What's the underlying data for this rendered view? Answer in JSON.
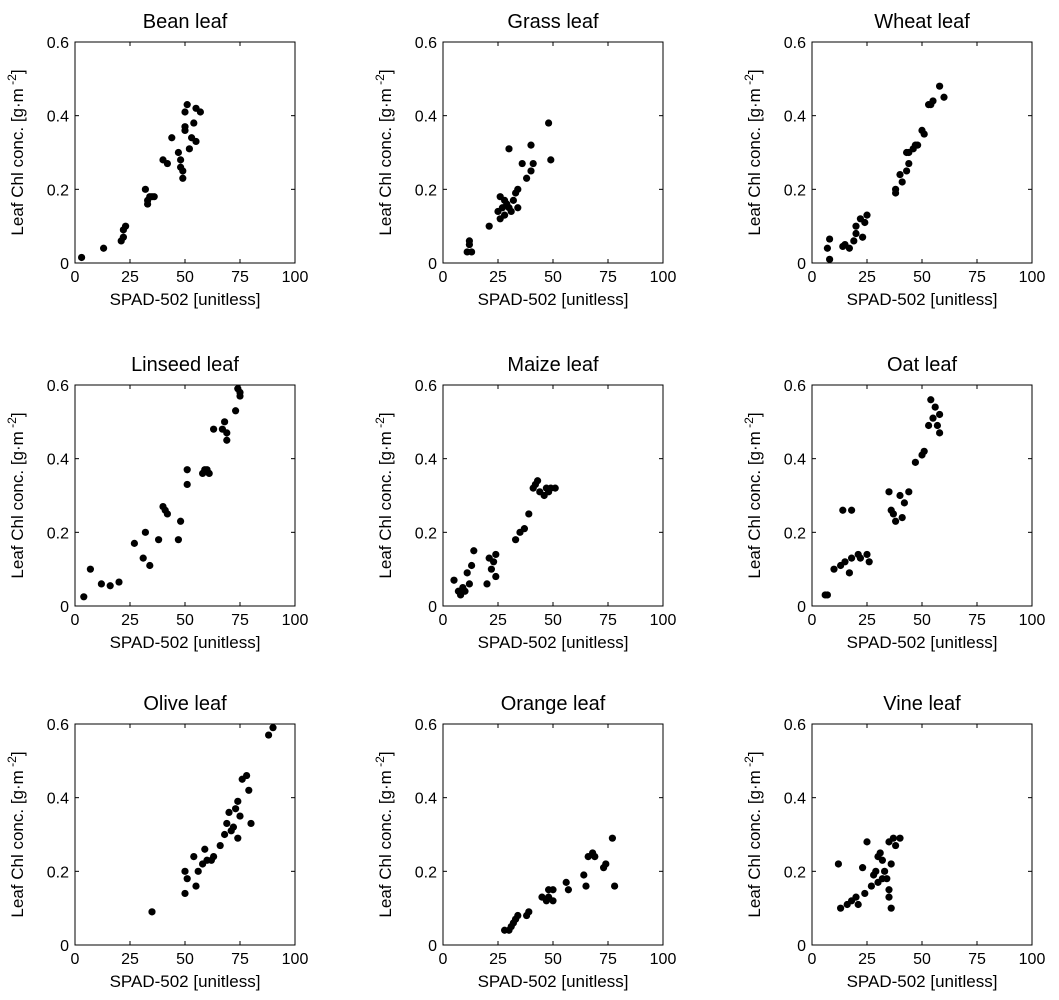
{
  "chart_data": [
    {
      "type": "scatter",
      "title": "Bean leaf",
      "xlabel": "SPAD-502 [unitless]",
      "ylabel": "Leaf Chl conc. [g·m",
      "ylabel_exp": "-2",
      "ylabel_close": "]",
      "xlim": [
        0,
        100
      ],
      "ylim": [
        0,
        0.6
      ],
      "x_ticks": [
        "0",
        "25",
        "50",
        "75",
        "100"
      ],
      "y_ticks": [
        "0",
        "0.2",
        "0.4",
        "0.6"
      ],
      "points": [
        [
          3,
          0.015
        ],
        [
          13,
          0.04
        ],
        [
          21,
          0.06
        ],
        [
          22,
          0.07
        ],
        [
          22,
          0.09
        ],
        [
          23,
          0.1
        ],
        [
          32,
          0.2
        ],
        [
          33,
          0.17
        ],
        [
          33,
          0.16
        ],
        [
          34,
          0.18
        ],
        [
          35,
          0.18
        ],
        [
          36,
          0.18
        ],
        [
          40,
          0.28
        ],
        [
          42,
          0.27
        ],
        [
          44,
          0.34
        ],
        [
          47,
          0.3
        ],
        [
          48,
          0.28
        ],
        [
          48,
          0.26
        ],
        [
          49,
          0.25
        ],
        [
          49,
          0.23
        ],
        [
          50,
          0.36
        ],
        [
          50,
          0.41
        ],
        [
          50,
          0.37
        ],
        [
          51,
          0.43
        ],
        [
          52,
          0.31
        ],
        [
          53,
          0.34
        ],
        [
          54,
          0.38
        ],
        [
          55,
          0.42
        ],
        [
          55,
          0.33
        ],
        [
          57,
          0.41
        ]
      ]
    },
    {
      "type": "scatter",
      "title": "Grass leaf",
      "xlabel": "SPAD-502 [unitless]",
      "ylabel": "Leaf Chl conc. [g·m",
      "ylabel_exp": "-2",
      "ylabel_close": "]",
      "xlim": [
        0,
        100
      ],
      "ylim": [
        0,
        0.6
      ],
      "x_ticks": [
        "0",
        "25",
        "50",
        "75",
        "100"
      ],
      "y_ticks": [
        "0",
        "0.2",
        "0.4",
        "0.6"
      ],
      "points": [
        [
          11,
          0.03
        ],
        [
          12,
          0.05
        ],
        [
          12,
          0.06
        ],
        [
          13,
          0.03
        ],
        [
          21,
          0.1
        ],
        [
          25,
          0.14
        ],
        [
          26,
          0.12
        ],
        [
          26,
          0.18
        ],
        [
          27,
          0.15
        ],
        [
          28,
          0.17
        ],
        [
          28,
          0.13
        ],
        [
          29,
          0.16
        ],
        [
          30,
          0.15
        ],
        [
          30,
          0.31
        ],
        [
          31,
          0.14
        ],
        [
          32,
          0.17
        ],
        [
          33,
          0.19
        ],
        [
          34,
          0.15
        ],
        [
          34,
          0.2
        ],
        [
          36,
          0.27
        ],
        [
          38,
          0.23
        ],
        [
          40,
          0.32
        ],
        [
          40,
          0.25
        ],
        [
          41,
          0.27
        ],
        [
          48,
          0.38
        ],
        [
          49,
          0.28
        ]
      ]
    },
    {
      "type": "scatter",
      "title": "Wheat leaf",
      "xlabel": "SPAD-502 [unitless]",
      "ylabel": "Leaf Chl conc. [g·m",
      "ylabel_exp": "-2",
      "ylabel_close": "]",
      "xlim": [
        0,
        100
      ],
      "ylim": [
        0,
        0.6
      ],
      "x_ticks": [
        "0",
        "25",
        "50",
        "75",
        "100"
      ],
      "y_ticks": [
        "0",
        "0.2",
        "0.4",
        "0.6"
      ],
      "points": [
        [
          7,
          0.04
        ],
        [
          8,
          0.065
        ],
        [
          8,
          0.01
        ],
        [
          14,
          0.045
        ],
        [
          15,
          0.05
        ],
        [
          17,
          0.04
        ],
        [
          19,
          0.06
        ],
        [
          20,
          0.08
        ],
        [
          20,
          0.1
        ],
        [
          22,
          0.12
        ],
        [
          23,
          0.07
        ],
        [
          24,
          0.11
        ],
        [
          25,
          0.13
        ],
        [
          38,
          0.2
        ],
        [
          38,
          0.19
        ],
        [
          40,
          0.24
        ],
        [
          41,
          0.22
        ],
        [
          43,
          0.25
        ],
        [
          43,
          0.3
        ],
        [
          44,
          0.3
        ],
        [
          44,
          0.27
        ],
        [
          46,
          0.31
        ],
        [
          47,
          0.32
        ],
        [
          48,
          0.32
        ],
        [
          50,
          0.36
        ],
        [
          51,
          0.35
        ],
        [
          53,
          0.43
        ],
        [
          54,
          0.43
        ],
        [
          55,
          0.44
        ],
        [
          58,
          0.48
        ],
        [
          60,
          0.45
        ]
      ]
    },
    {
      "type": "scatter",
      "title": "Linseed leaf",
      "xlabel": "SPAD-502 [unitless]",
      "ylabel": "Leaf Chl conc. [g·m",
      "ylabel_exp": "-2",
      "ylabel_close": "]",
      "xlim": [
        0,
        100
      ],
      "ylim": [
        0,
        0.6
      ],
      "x_ticks": [
        "0",
        "25",
        "50",
        "75",
        "100"
      ],
      "y_ticks": [
        "0",
        "0.2",
        "0.4",
        "0.6"
      ],
      "points": [
        [
          4,
          0.025
        ],
        [
          7,
          0.1
        ],
        [
          12,
          0.06
        ],
        [
          16,
          0.055
        ],
        [
          20,
          0.065
        ],
        [
          27,
          0.17
        ],
        [
          31,
          0.13
        ],
        [
          32,
          0.2
        ],
        [
          34,
          0.11
        ],
        [
          38,
          0.18
        ],
        [
          40,
          0.27
        ],
        [
          41,
          0.26
        ],
        [
          42,
          0.25
        ],
        [
          47,
          0.18
        ],
        [
          48,
          0.23
        ],
        [
          51,
          0.33
        ],
        [
          51,
          0.37
        ],
        [
          58,
          0.36
        ],
        [
          59,
          0.37
        ],
        [
          60,
          0.37
        ],
        [
          61,
          0.36
        ],
        [
          63,
          0.48
        ],
        [
          67,
          0.48
        ],
        [
          68,
          0.5
        ],
        [
          69,
          0.47
        ],
        [
          69,
          0.45
        ],
        [
          73,
          0.53
        ],
        [
          74,
          0.59
        ],
        [
          75,
          0.58
        ],
        [
          75,
          0.57
        ]
      ]
    },
    {
      "type": "scatter",
      "title": "Maize leaf",
      "xlabel": "SPAD-502 [unitless]",
      "ylabel": "Leaf Chl conc. [g·m",
      "ylabel_exp": "-2",
      "ylabel_close": "]",
      "xlim": [
        0,
        100
      ],
      "ylim": [
        0,
        0.6
      ],
      "x_ticks": [
        "0",
        "25",
        "50",
        "75",
        "100"
      ],
      "y_ticks": [
        "0",
        "0.2",
        "0.4",
        "0.6"
      ],
      "points": [
        [
          5,
          0.07
        ],
        [
          7,
          0.04
        ],
        [
          8,
          0.03
        ],
        [
          9,
          0.05
        ],
        [
          10,
          0.04
        ],
        [
          11,
          0.09
        ],
        [
          12,
          0.06
        ],
        [
          13,
          0.11
        ],
        [
          14,
          0.15
        ],
        [
          20,
          0.06
        ],
        [
          21,
          0.13
        ],
        [
          22,
          0.1
        ],
        [
          23,
          0.12
        ],
        [
          24,
          0.14
        ],
        [
          24,
          0.08
        ],
        [
          33,
          0.18
        ],
        [
          35,
          0.2
        ],
        [
          37,
          0.21
        ],
        [
          39,
          0.25
        ],
        [
          41,
          0.32
        ],
        [
          42,
          0.33
        ],
        [
          43,
          0.34
        ],
        [
          44,
          0.31
        ],
        [
          46,
          0.3
        ],
        [
          47,
          0.32
        ],
        [
          48,
          0.31
        ],
        [
          49,
          0.32
        ],
        [
          51,
          0.32
        ]
      ]
    },
    {
      "type": "scatter",
      "title": "Oat leaf",
      "xlabel": "SPAD-502 [unitless]",
      "ylabel": "Leaf Chl conc. [g·m",
      "ylabel_exp": "-2",
      "ylabel_close": "]",
      "xlim": [
        0,
        100
      ],
      "ylim": [
        0,
        0.6
      ],
      "x_ticks": [
        "0",
        "25",
        "50",
        "75",
        "100"
      ],
      "y_ticks": [
        "0",
        "0.2",
        "0.4",
        "0.6"
      ],
      "points": [
        [
          6,
          0.03
        ],
        [
          7,
          0.03
        ],
        [
          10,
          0.1
        ],
        [
          13,
          0.11
        ],
        [
          14,
          0.26
        ],
        [
          15,
          0.12
        ],
        [
          17,
          0.09
        ],
        [
          18,
          0.26
        ],
        [
          18,
          0.13
        ],
        [
          21,
          0.14
        ],
        [
          22,
          0.13
        ],
        [
          25,
          0.14
        ],
        [
          26,
          0.12
        ],
        [
          35,
          0.31
        ],
        [
          36,
          0.26
        ],
        [
          37,
          0.25
        ],
        [
          38,
          0.23
        ],
        [
          40,
          0.3
        ],
        [
          41,
          0.24
        ],
        [
          42,
          0.28
        ],
        [
          44,
          0.31
        ],
        [
          47,
          0.39
        ],
        [
          50,
          0.41
        ],
        [
          51,
          0.42
        ],
        [
          53,
          0.49
        ],
        [
          54,
          0.56
        ],
        [
          55,
          0.51
        ],
        [
          56,
          0.54
        ],
        [
          57,
          0.49
        ],
        [
          58,
          0.52
        ],
        [
          58,
          0.47
        ]
      ]
    },
    {
      "type": "scatter",
      "title": "Olive leaf",
      "xlabel": "SPAD-502 [unitless]",
      "ylabel": "Leaf Chl conc. [g·m",
      "ylabel_exp": "-2",
      "ylabel_close": "]",
      "xlim": [
        0,
        100
      ],
      "ylim": [
        0,
        0.6
      ],
      "x_ticks": [
        "0",
        "25",
        "50",
        "75",
        "100"
      ],
      "y_ticks": [
        "0",
        "0.2",
        "0.4",
        "0.6"
      ],
      "points": [
        [
          35,
          0.09
        ],
        [
          50,
          0.14
        ],
        [
          50,
          0.2
        ],
        [
          51,
          0.18
        ],
        [
          54,
          0.24
        ],
        [
          55,
          0.16
        ],
        [
          56,
          0.2
        ],
        [
          58,
          0.22
        ],
        [
          59,
          0.26
        ],
        [
          60,
          0.23
        ],
        [
          62,
          0.23
        ],
        [
          63,
          0.24
        ],
        [
          66,
          0.27
        ],
        [
          68,
          0.3
        ],
        [
          69,
          0.33
        ],
        [
          70,
          0.36
        ],
        [
          71,
          0.31
        ],
        [
          72,
          0.32
        ],
        [
          73,
          0.37
        ],
        [
          74,
          0.39
        ],
        [
          74,
          0.29
        ],
        [
          75,
          0.35
        ],
        [
          76,
          0.45
        ],
        [
          78,
          0.46
        ],
        [
          79,
          0.42
        ],
        [
          80,
          0.33
        ],
        [
          88,
          0.57
        ],
        [
          90,
          0.59
        ]
      ]
    },
    {
      "type": "scatter",
      "title": "Orange leaf",
      "xlabel": "SPAD-502 [unitless]",
      "ylabel": "Leaf Chl conc. [g·m",
      "ylabel_exp": "-2",
      "ylabel_close": "]",
      "xlim": [
        0,
        100
      ],
      "ylim": [
        0,
        0.6
      ],
      "x_ticks": [
        "0",
        "25",
        "50",
        "75",
        "100"
      ],
      "y_ticks": [
        "0",
        "0.2",
        "0.4",
        "0.6"
      ],
      "points": [
        [
          28,
          0.04
        ],
        [
          30,
          0.04
        ],
        [
          31,
          0.05
        ],
        [
          32,
          0.06
        ],
        [
          33,
          0.07
        ],
        [
          34,
          0.08
        ],
        [
          38,
          0.08
        ],
        [
          39,
          0.09
        ],
        [
          45,
          0.13
        ],
        [
          47,
          0.12
        ],
        [
          48,
          0.15
        ],
        [
          48,
          0.13
        ],
        [
          50,
          0.12
        ],
        [
          50,
          0.15
        ],
        [
          56,
          0.17
        ],
        [
          57,
          0.15
        ],
        [
          64,
          0.19
        ],
        [
          65,
          0.16
        ],
        [
          66,
          0.24
        ],
        [
          68,
          0.25
        ],
        [
          69,
          0.24
        ],
        [
          73,
          0.21
        ],
        [
          74,
          0.22
        ],
        [
          77,
          0.29
        ],
        [
          78,
          0.16
        ]
      ]
    },
    {
      "type": "scatter",
      "title": "Vine leaf",
      "xlabel": "SPAD-502 [unitless]",
      "ylabel": "Leaf Chl conc. [g·m",
      "ylabel_exp": "-2",
      "ylabel_close": "]",
      "xlim": [
        0,
        100
      ],
      "ylim": [
        0,
        0.6
      ],
      "x_ticks": [
        "0",
        "25",
        "50",
        "75",
        "100"
      ],
      "y_ticks": [
        "0",
        "0.2",
        "0.4",
        "0.6"
      ],
      "points": [
        [
          12,
          0.22
        ],
        [
          13,
          0.1
        ],
        [
          16,
          0.11
        ],
        [
          18,
          0.12
        ],
        [
          20,
          0.13
        ],
        [
          21,
          0.11
        ],
        [
          23,
          0.21
        ],
        [
          24,
          0.14
        ],
        [
          25,
          0.28
        ],
        [
          27,
          0.16
        ],
        [
          28,
          0.19
        ],
        [
          29,
          0.2
        ],
        [
          30,
          0.17
        ],
        [
          30,
          0.24
        ],
        [
          31,
          0.25
        ],
        [
          32,
          0.23
        ],
        [
          32,
          0.18
        ],
        [
          33,
          0.2
        ],
        [
          34,
          0.18
        ],
        [
          35,
          0.28
        ],
        [
          35,
          0.15
        ],
        [
          35,
          0.13
        ],
        [
          36,
          0.1
        ],
        [
          36,
          0.22
        ],
        [
          37,
          0.29
        ],
        [
          38,
          0.27
        ],
        [
          40,
          0.29
        ]
      ]
    }
  ]
}
